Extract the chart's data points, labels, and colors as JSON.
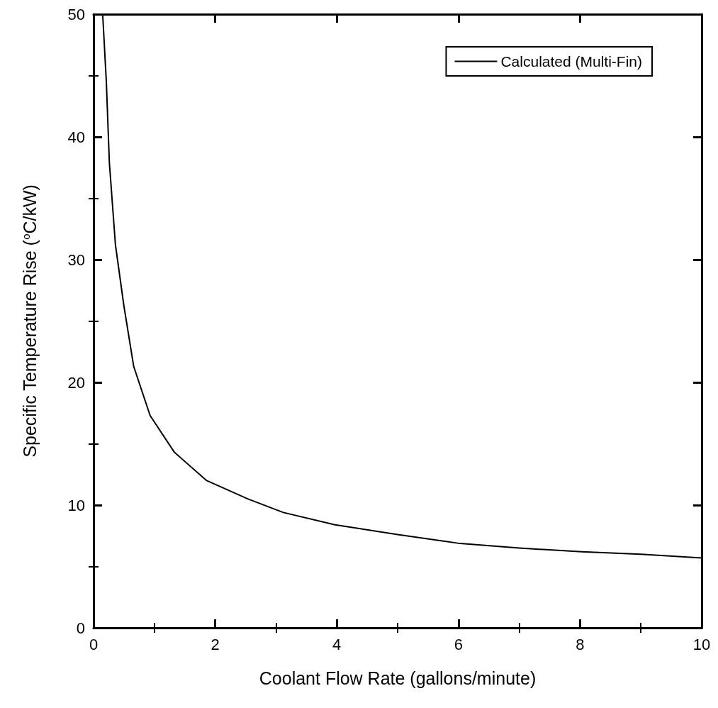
{
  "chart_data": {
    "type": "line",
    "xlabel": "Coolant Flow Rate (gallons/minute)",
    "ylabel": "Specific Temperature Rise ($^{o}$C/kW)",
    "x": [
      0.15,
      0.21,
      0.26,
      0.36,
      0.5,
      0.66,
      0.93,
      1.33,
      1.86,
      2.54,
      3.12,
      3.97,
      5.0,
      5.99,
      7.0,
      8.03,
      9.0,
      10.0
    ],
    "series": [
      {
        "name": "Calculated (Multi-Fin)",
        "color": "#000000",
        "values": [
          50,
          44.5,
          37.9,
          31.2,
          26.2,
          21.3,
          17.3,
          14.3,
          12.0,
          10.5,
          9.4,
          8.4,
          7.6,
          6.9,
          6.5,
          6.2,
          6.0,
          5.7
        ]
      }
    ],
    "xlim": [
      0,
      10
    ],
    "xticks": [
      0,
      2,
      4,
      6,
      8,
      10
    ],
    "ylim": [
      0,
      50
    ],
    "yticks": [
      0,
      10,
      20,
      30,
      40,
      50
    ],
    "legend": "top right",
    "grid": false,
    "marker": "none",
    "line_style": "solid"
  }
}
